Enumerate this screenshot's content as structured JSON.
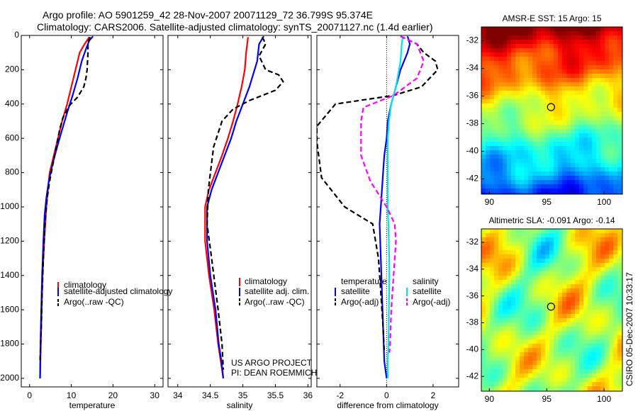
{
  "header": {
    "line1": "Argo profile: AO 5901259_42 28-Nov-2007 20071129_72 36.799S 95.374E",
    "line2": "Climatology: CARS2006. Satellite-adjusted climatology: synTS_20071127.nc (1.4d earlier)"
  },
  "footer_note": {
    "line1": "US ARGO PROJECT",
    "line2": "PI: DEAN ROEMMICH"
  },
  "side_stamp": "CSIRO 05-Dec-2007 10:33:17",
  "colors": {
    "climatology": "#ff0000",
    "satellite": "#0000ff",
    "argo": "#000000",
    "salinity_sat": "#00e5e5",
    "salinity_argo": "#ff00ff"
  },
  "legends": {
    "temperature": [
      "climatology",
      "satellite-adjusted climatology",
      "Argo(..raw -QC)"
    ],
    "salinity": [
      "climatology",
      "satellite adj. clim.",
      "Argo(..raw -QC)"
    ],
    "difference_temperature": {
      "title": "temperature",
      "items": [
        "satellite",
        "Argo(-adj)"
      ]
    },
    "difference_salinity": {
      "title": "salinity",
      "items": [
        "satellite",
        "Argo(-adj)"
      ]
    }
  },
  "chart_data": [
    {
      "type": "line",
      "xlabel": "temperature",
      "xlim": [
        -2,
        32
      ],
      "xticks": [
        0,
        10,
        20,
        30
      ],
      "ylim": [
        0,
        2050
      ],
      "yticks": [
        0,
        200,
        400,
        600,
        800,
        1000,
        1200,
        1400,
        1600,
        1800,
        2000
      ],
      "y_reversed": true,
      "series": [
        {
          "name": "climatology",
          "color": "#ff0000",
          "dash": "solid",
          "x": [
            14.3,
            13.2,
            12.0,
            11.0,
            10.0,
            9.0,
            7.8,
            6.8,
            5.8,
            4.8,
            4.0,
            3.5,
            3.1,
            2.9,
            2.7,
            2.5
          ],
          "y": [
            10,
            50,
            100,
            200,
            300,
            400,
            500,
            600,
            700,
            800,
            1000,
            1200,
            1400,
            1600,
            1800,
            2000
          ]
        },
        {
          "name": "satellite-adjusted climatology",
          "color": "#0000ff",
          "dash": "solid",
          "x": [
            15.2,
            14.3,
            13.5,
            12.5,
            11.5,
            10.3,
            9.0,
            7.8,
            6.6,
            5.5,
            4.6,
            4.0,
            3.6,
            3.3,
            3.0,
            2.8,
            2.6,
            2.5
          ],
          "y": [
            5,
            30,
            80,
            150,
            250,
            350,
            450,
            550,
            650,
            750,
            850,
            950,
            1050,
            1200,
            1400,
            1600,
            1800,
            2000
          ]
        },
        {
          "name": "Argo(..raw -QC)",
          "color": "#000000",
          "dash": "dashed",
          "x": [
            14.5,
            14.0,
            14.0,
            13.8,
            13.5,
            13.0,
            11.5,
            9.5,
            8.0,
            7.2,
            6.4,
            5.6,
            4.8,
            4.2,
            3.7,
            3.3,
            3.0,
            2.8,
            2.5
          ],
          "y": [
            10,
            40,
            100,
            200,
            250,
            300,
            360,
            410,
            480,
            550,
            650,
            750,
            850,
            950,
            1100,
            1300,
            1500,
            1700,
            1900
          ]
        }
      ]
    },
    {
      "type": "line",
      "xlabel": "salinity",
      "xlim": [
        33.85,
        36.05
      ],
      "xticks": [
        34,
        34.5,
        35,
        35.5,
        36
      ],
      "ylim": [
        0,
        2050
      ],
      "yticks": [
        0,
        200,
        400,
        600,
        800,
        1000,
        1200,
        1400,
        1600,
        1800,
        2000
      ],
      "y_reversed": true,
      "series": [
        {
          "name": "climatology",
          "color": "#ff0000",
          "dash": "solid",
          "x": [
            35.08,
            35.05,
            35.03,
            34.98,
            34.92,
            34.85,
            34.77,
            34.68,
            34.58,
            34.48,
            34.42,
            34.42,
            34.48,
            34.56,
            34.62,
            34.66,
            34.7
          ],
          "y": [
            10,
            100,
            200,
            300,
            400,
            500,
            600,
            700,
            800,
            900,
            1000,
            1200,
            1400,
            1600,
            1800,
            1900,
            2000
          ]
        },
        {
          "name": "satellite adj. clim.",
          "color": "#0000ff",
          "dash": "solid",
          "x": [
            35.32,
            35.25,
            35.22,
            35.1,
            35.0,
            34.9,
            34.82,
            34.72,
            34.62,
            34.52,
            34.45,
            34.45,
            34.5,
            34.58,
            34.63,
            34.67,
            34.7
          ],
          "y": [
            5,
            50,
            150,
            300,
            400,
            500,
            600,
            700,
            800,
            900,
            1000,
            1200,
            1400,
            1600,
            1800,
            1900,
            2000
          ]
        },
        {
          "name": "Argo(..raw -QC)",
          "color": "#000000",
          "dash": "dashed",
          "x": [
            35.3,
            35.35,
            35.25,
            35.35,
            35.55,
            35.62,
            35.5,
            35.1,
            34.85,
            34.68,
            34.55,
            34.47,
            34.45,
            34.52,
            34.62,
            34.68,
            34.7
          ],
          "y": [
            10,
            50,
            120,
            200,
            230,
            270,
            320,
            380,
            430,
            500,
            650,
            900,
            1100,
            1300,
            1600,
            1800,
            1950
          ]
        }
      ]
    },
    {
      "type": "line",
      "xlabel": "difference from climatology",
      "xlim": [
        -3,
        3.1
      ],
      "xticks": [
        -2,
        0,
        2
      ],
      "ylim": [
        0,
        2050
      ],
      "yticks": [
        0,
        200,
        400,
        600,
        800,
        1000,
        1200,
        1400,
        1600,
        1800,
        2000
      ],
      "y_reversed": true,
      "zero_line": true,
      "series": [
        {
          "name": "temperature satellite",
          "color": "#0000ff",
          "dash": "solid",
          "x": [
            0.9,
            1.0,
            0.9,
            0.6,
            0.4,
            0.2,
            0.05,
            0.0,
            -0.1,
            -0.15,
            -0.2,
            -0.25,
            -0.3,
            -0.25,
            -0.2,
            -0.15,
            -0.1,
            0.0
          ],
          "y": [
            5,
            50,
            100,
            200,
            300,
            400,
            500,
            600,
            700,
            800,
            900,
            1000,
            1100,
            1300,
            1500,
            1700,
            1900,
            2000
          ]
        },
        {
          "name": "temperature Argo(-adj)",
          "color": "#000000",
          "dash": "dashed",
          "x": [
            0.6,
            1.3,
            1.6,
            2.1,
            2.2,
            1.5,
            0.3,
            -2.2,
            -3.0,
            -3.0,
            -2.8,
            -1.8,
            -0.6,
            -0.35,
            -0.25,
            -0.15,
            -0.1
          ],
          "y": [
            5,
            50,
            100,
            150,
            200,
            300,
            350,
            400,
            530,
            620,
            830,
            1000,
            1100,
            1300,
            1500,
            1700,
            1850
          ]
        },
        {
          "name": "salinity satellite",
          "color": "#00e5e5",
          "dash": "solid",
          "x": [
            0.7,
            0.65,
            0.6,
            0.4,
            0.2,
            0.1,
            0.05,
            0.05,
            0.05,
            0.1,
            0.12,
            0.1,
            0.08,
            0.05,
            0.05
          ],
          "y": [
            5,
            50,
            150,
            300,
            400,
            500,
            600,
            800,
            1000,
            1200,
            1400,
            1600,
            1800,
            1900,
            2000
          ]
        },
        {
          "name": "salinity Argo(-adj)",
          "color": "#ff00ff",
          "dash": "dashed",
          "x": [
            0.6,
            1.3,
            1.6,
            1.3,
            0.3,
            -1.0,
            -1.1,
            -1.1,
            -0.7,
            0.0,
            0.35,
            0.4,
            0.3,
            0.2,
            0.15,
            0.12
          ],
          "y": [
            5,
            50,
            150,
            250,
            350,
            420,
            500,
            700,
            850,
            1000,
            1100,
            1200,
            1400,
            1600,
            1800,
            1850
          ]
        }
      ]
    },
    {
      "type": "heatmap",
      "title": "AMSR-E SST: 15 Argo: 15",
      "xlim": [
        89.3,
        101.6
      ],
      "ylim": [
        -43.1,
        -31.0
      ],
      "xticks": [
        90,
        95,
        100
      ],
      "yticks": [
        -32,
        -34,
        -36,
        -38,
        -40,
        -42
      ],
      "colormap": "jet",
      "marker": {
        "lon": 95.374,
        "lat": -36.799
      }
    },
    {
      "type": "heatmap",
      "title": "Altimetric SLA: -0.091 Argo: -0.14",
      "xlim": [
        89.3,
        101.6
      ],
      "ylim": [
        -43.1,
        -31.0
      ],
      "xticks": [
        90,
        95,
        100
      ],
      "yticks": [
        -32,
        -34,
        -36,
        -38,
        -40,
        -42
      ],
      "colormap": "jet",
      "marker": {
        "lon": 95.374,
        "lat": -36.799
      }
    }
  ]
}
